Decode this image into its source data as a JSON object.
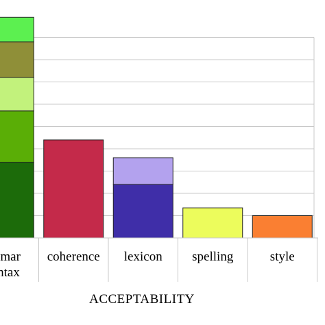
{
  "chart_data": {
    "type": "bar",
    "stacked": true,
    "xlabel": "ACCEPTABILITY",
    "grid": true,
    "categories": [
      "grammar syntax",
      "coherence",
      "lexicon",
      "spelling",
      "style"
    ],
    "category_labels": [
      [
        "mmar",
        "yntax"
      ],
      [
        "coherence"
      ],
      [
        "lexicon"
      ],
      [
        "spelling"
      ],
      [
        "style"
      ]
    ],
    "segments": [
      [
        {
          "value": 34,
          "color": "#1c6b0a"
        },
        {
          "value": 23,
          "color": "#5aae06"
        },
        {
          "value": 15,
          "color": "#c2f27c"
        },
        {
          "value": 16,
          "color": "#8f8f38"
        },
        {
          "value": 11,
          "color": "#5cf050"
        }
      ],
      [
        {
          "value": 44,
          "color": "#c42a4a"
        }
      ],
      [
        {
          "value": 24,
          "color": "#3f2ea8"
        },
        {
          "value": 12,
          "color": "#b3a2ee"
        }
      ],
      [
        {
          "value": 13.5,
          "color": "#ecfc5c"
        }
      ],
      [
        {
          "value": 10,
          "color": "#fa7f32"
        }
      ]
    ]
  }
}
